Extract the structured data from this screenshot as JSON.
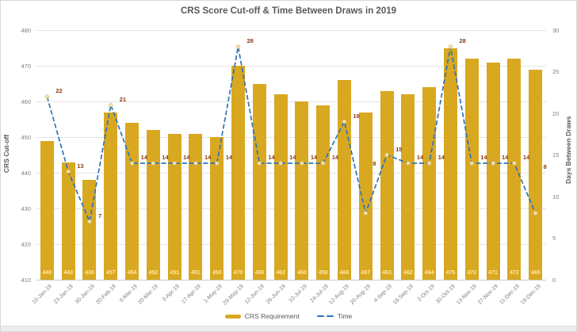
{
  "chart_data": {
    "type": "bar",
    "subtype": "combo-bar-line-dual-axis",
    "title": "CRS Score Cut-off & Time Between Draws in 2019",
    "categories": [
      "10-Jan-19",
      "23-Jan-19",
      "30-Jan-19",
      "20-Feb-19",
      "6-Mar-19",
      "20-Mar-19",
      "3-Apr-19",
      "17-Apr-19",
      "1-May-19",
      "29-May-19",
      "12-Jun-19",
      "26-Jun-19",
      "10-Jul-19",
      "24-Jul-19",
      "12-Aug-19",
      "20-Aug-19",
      "4-Sep-19",
      "18-Sep-19",
      "2-Oct-19",
      "30-Oct-19",
      "13-Nov-19",
      "27-Nov-19",
      "11-Dec-19",
      "19-Dec-19"
    ],
    "series": [
      {
        "name": "CRS Requirement",
        "type": "bar",
        "axis": "left",
        "values": [
          449,
          443,
          438,
          457,
          454,
          452,
          451,
          451,
          450,
          470,
          465,
          462,
          460,
          459,
          466,
          457,
          463,
          462,
          464,
          475,
          472,
          471,
          472,
          469
        ]
      },
      {
        "name": "Time",
        "type": "line",
        "axis": "right",
        "style": "dashed",
        "values": [
          22,
          13,
          7,
          21,
          14,
          14,
          14,
          14,
          14,
          28,
          14,
          14,
          14,
          14,
          19,
          8,
          15,
          14,
          14,
          28,
          14,
          14,
          14,
          8
        ]
      }
    ],
    "left_axis": {
      "title": "CRS Cut-off",
      "min": 410,
      "max": 480,
      "ticks": [
        480,
        470,
        460,
        450,
        440,
        430,
        420,
        410
      ]
    },
    "right_axis": {
      "title": "Days Between Draws",
      "min": 0,
      "max": 30,
      "ticks": [
        30,
        25,
        20,
        15,
        10,
        5,
        0
      ]
    },
    "grid": true,
    "legend_position": "bottom",
    "colors": {
      "bar": "#D9A821",
      "bar_value_label": "#FFE9A0",
      "line": "#2E75B6",
      "line_marker_fill": "#F1E2AE",
      "line_marker_stroke": "#CFBA7A",
      "line_value_label": "#8B3A0F",
      "title_text": "#595959",
      "tick_text": "#808080",
      "gridline": "#E4E4E4"
    }
  },
  "legend": {
    "bar_label": "CRS Requirement",
    "line_label": "Time"
  }
}
